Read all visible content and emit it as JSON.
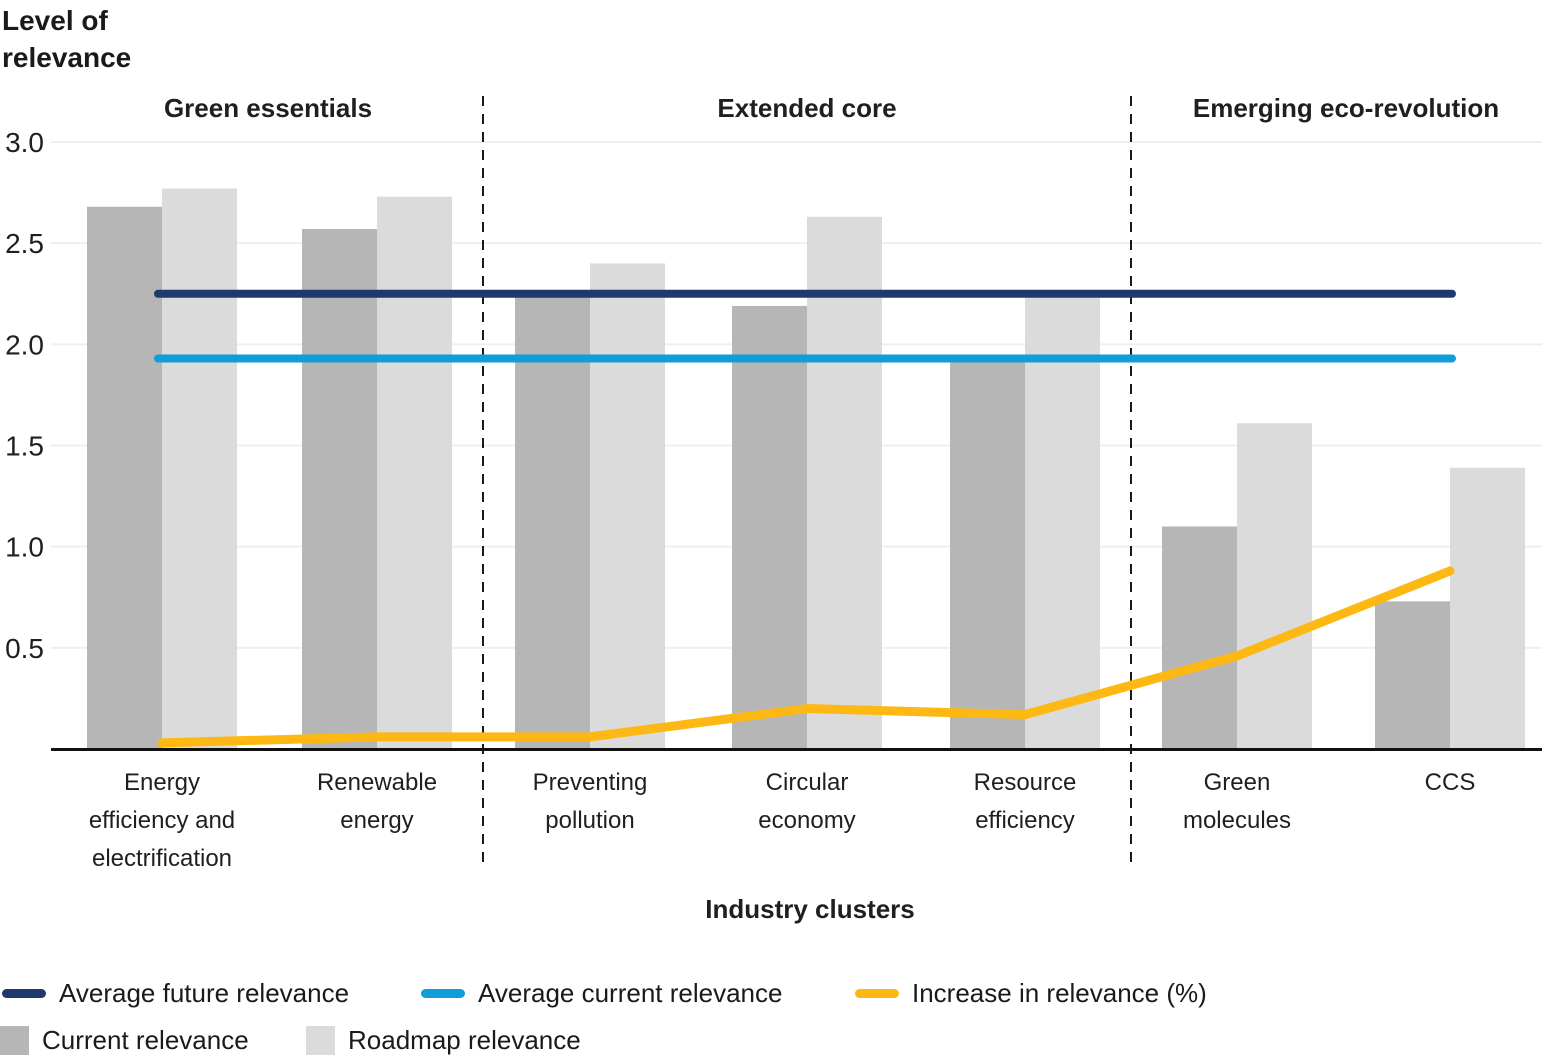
{
  "title": "Level of\nrelevance",
  "x_axis_title": "Industry clusters",
  "clusters": [
    {
      "label": "Green essentials"
    },
    {
      "label": "Extended core"
    },
    {
      "label": "Emerging eco-revolution"
    }
  ],
  "legend": {
    "avg_future": "Average future relevance",
    "avg_current": "Average current relevance",
    "increase": "Increase in relevance (%)",
    "current": "Current relevance",
    "roadmap": "Roadmap relevance"
  },
  "colors": {
    "navy": "#1e3a6d",
    "blue": "#119dd9",
    "yellow": "#fdb813",
    "bar_current": "#b6b6b6",
    "bar_roadmap": "#dbdbdb",
    "gridline": "#efefef",
    "axis": "#111111",
    "separator": "#1a1a1a",
    "text": "#1f1f1f"
  },
  "chart_data": {
    "type": "bar",
    "title": "",
    "ylabel": "Level of relevance",
    "xlabel": "Industry clusters",
    "ylim": [
      0,
      3.0
    ],
    "yticks": [
      3.0,
      2.5,
      2.0,
      1.5,
      1.0,
      0.5
    ],
    "grid": true,
    "legend_position": "bottom",
    "category_names": [
      "Energy efficiency and electrification",
      "Renewable energy",
      "Preventing pollution",
      "Circular economy",
      "Resource efficiency",
      "Green molecules",
      "CCS"
    ],
    "category_label_lines": [
      [
        "Energy",
        "efficiency and",
        "electrification"
      ],
      [
        "Renewable",
        "energy"
      ],
      [
        "Preventing",
        "pollution"
      ],
      [
        "Circular",
        "economy"
      ],
      [
        "Resource",
        "efficiency"
      ],
      [
        "Green",
        "molecules"
      ],
      [
        "CCS"
      ]
    ],
    "cluster_of_category": [
      0,
      0,
      1,
      1,
      1,
      2,
      2
    ],
    "series": [
      {
        "name": "Current relevance",
        "type": "bar",
        "values": [
          2.68,
          2.57,
          2.24,
          2.19,
          1.91,
          1.1,
          0.73
        ]
      },
      {
        "name": "Roadmap relevance",
        "type": "bar",
        "values": [
          2.77,
          2.73,
          2.4,
          2.63,
          2.24,
          1.61,
          1.39
        ]
      },
      {
        "name": "Increase in relevance (%)",
        "type": "line",
        "values": [
          0.03,
          0.06,
          0.06,
          0.2,
          0.17,
          0.46,
          0.88
        ]
      },
      {
        "name": "Average future relevance",
        "type": "hline",
        "value": 2.25
      },
      {
        "name": "Average current relevance",
        "type": "hline",
        "value": 1.93
      }
    ]
  }
}
